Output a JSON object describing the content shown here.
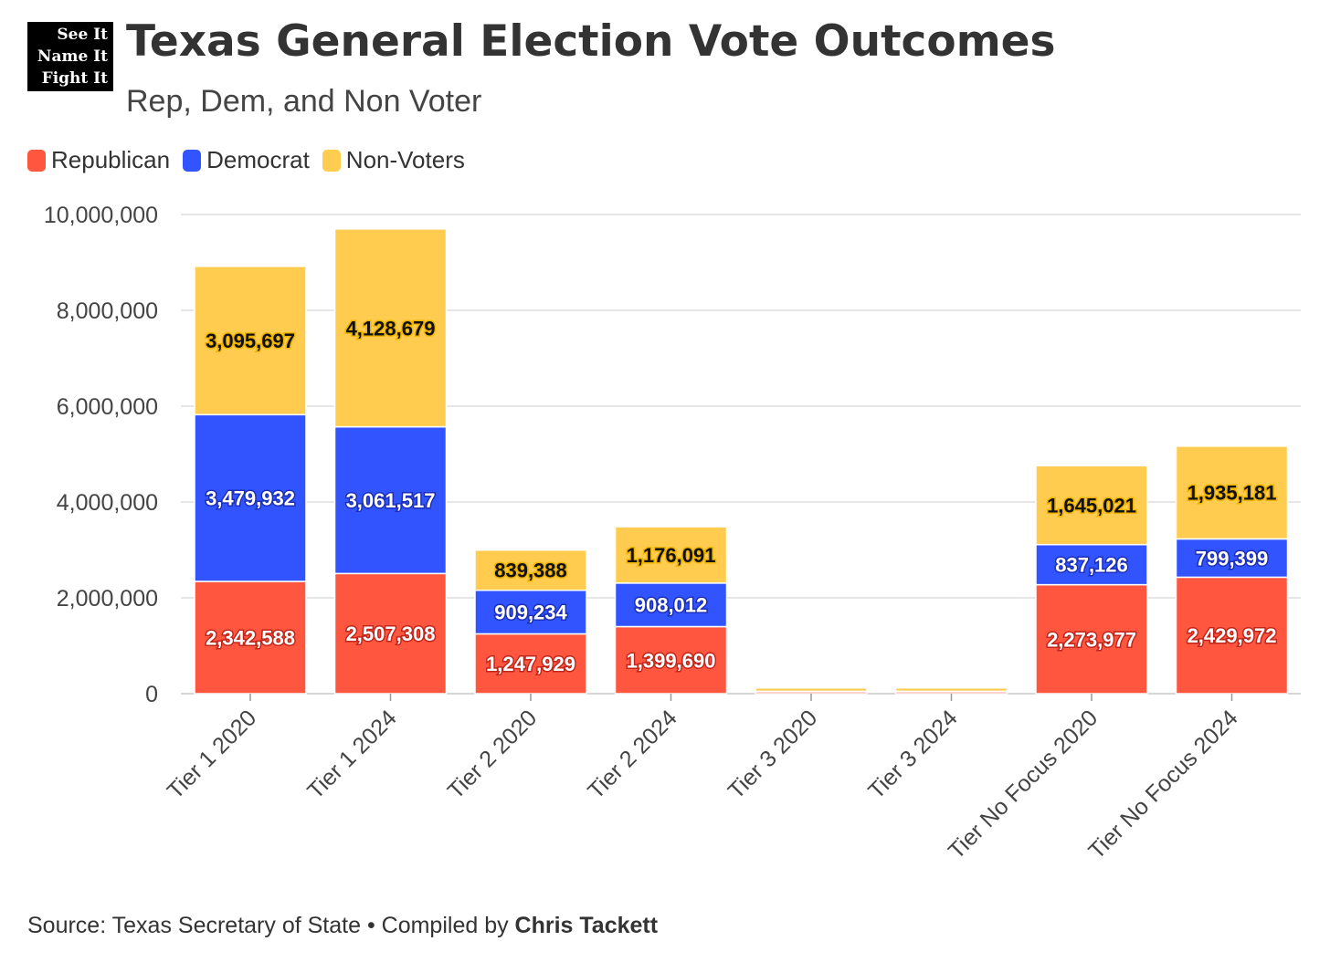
{
  "logo": {
    "lines": [
      "See It",
      "Name It",
      "Fight It"
    ]
  },
  "header": {
    "title": "Texas General Election Vote Outcomes",
    "subtitle": "Rep, Dem, and Non Voter"
  },
  "legend": [
    {
      "label": "Republican",
      "color": "#ff5640"
    },
    {
      "label": "Democrat",
      "color": "#3154ff"
    },
    {
      "label": "Non-Voters",
      "color": "#ffcc4f"
    }
  ],
  "footer": {
    "source": "Source: Texas Secretary of State • Compiled by ",
    "author": "Chris Tackett"
  },
  "chart_data": {
    "type": "bar",
    "stacked": true,
    "categories": [
      "Tier 1 2020",
      "Tier 1 2024",
      "Tier 2 2020",
      "Tier 2 2024",
      "Tier 3 2020",
      "Tier 3 2024",
      "Tier No Focus 2020",
      "Tier No Focus 2024"
    ],
    "series": [
      {
        "name": "Republican",
        "color": "#ff5640",
        "values": [
          2342588,
          2507308,
          1247929,
          1399690,
          40000,
          40000,
          2273977,
          2429972
        ],
        "labels": [
          "2,342,588",
          "2,507,308",
          "1,247,929",
          "1,399,690",
          "",
          "",
          "2,273,977",
          "2,429,972"
        ]
      },
      {
        "name": "Democrat",
        "color": "#3154ff",
        "values": [
          3479932,
          3061517,
          909234,
          908012,
          10000,
          10000,
          837126,
          799399
        ],
        "labels": [
          "3,479,932",
          "3,061,517",
          "909,234",
          "908,012",
          "",
          "",
          "837,126",
          "799,399"
        ]
      },
      {
        "name": "Non-Voters",
        "color": "#ffcc4f",
        "values": [
          3095697,
          4128679,
          839388,
          1176091,
          70000,
          70000,
          1645021,
          1935181
        ],
        "labels": [
          "3,095,697",
          "4,128,679",
          "839,388",
          "1,176,091",
          "",
          "",
          "1,645,021",
          "1,935,181"
        ]
      }
    ],
    "ylim": [
      0,
      10000000
    ],
    "yticks": [
      0,
      2000000,
      4000000,
      6000000,
      8000000,
      10000000
    ],
    "ytick_labels": [
      "0",
      "2,000,000",
      "4,000,000",
      "6,000,000",
      "8,000,000",
      "10,000,000"
    ],
    "grid": true,
    "legend_position": "top-left"
  }
}
